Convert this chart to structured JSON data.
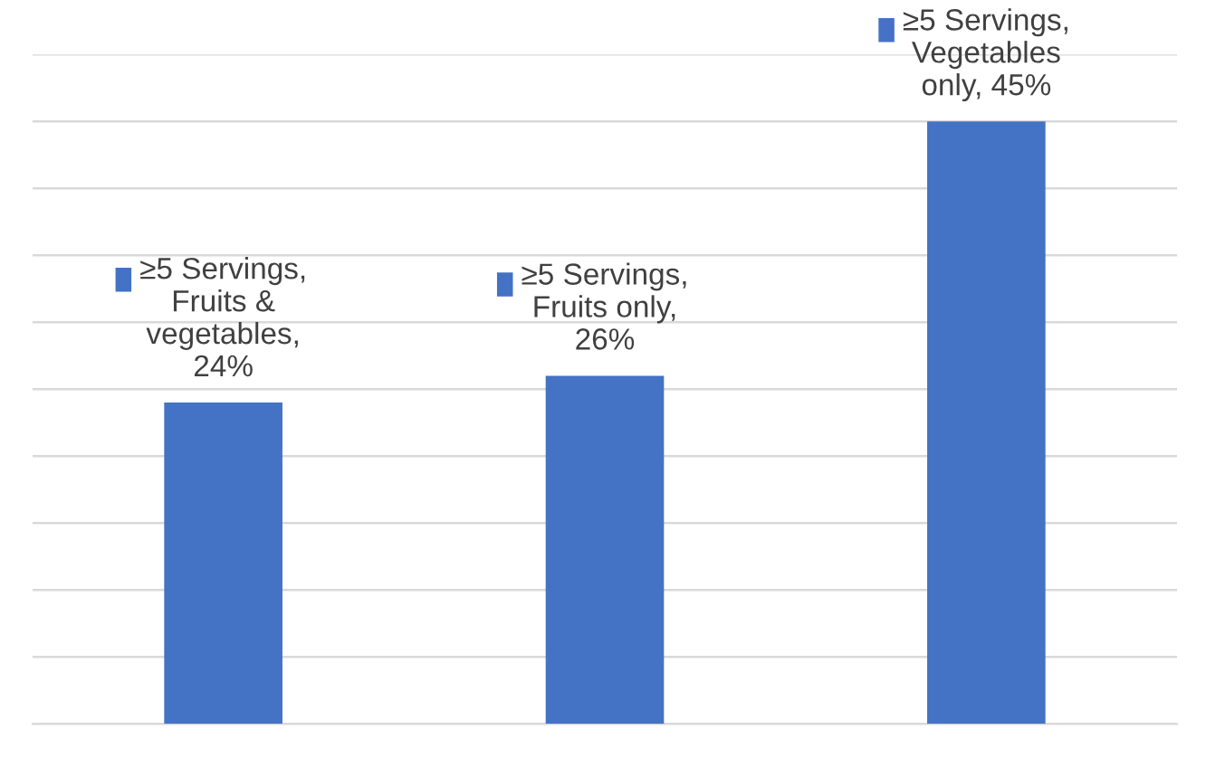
{
  "chart_data": {
    "type": "bar",
    "categories": [
      null,
      null,
      null
    ],
    "values": [
      24,
      26,
      45
    ],
    "color": "#4472c4",
    "value_labels": [
      "≥5 Servings, Fruits & vegetables, 24%",
      "≥5 Servings, Fruits only, 26%",
      "≥5 Servings, Vegetables only, 45%"
    ],
    "ylim": [
      0,
      50
    ],
    "yticks": [
      {
        "value": 0,
        "label": null
      },
      {
        "value": 5,
        "label": null
      },
      {
        "value": 10,
        "label": null
      },
      {
        "value": 15,
        "label": null
      },
      {
        "value": 20,
        "label": null
      },
      {
        "value": 25,
        "label": null
      },
      {
        "value": 30,
        "label": null
      },
      {
        "value": 35,
        "label": null
      },
      {
        "value": 40,
        "label": null
      },
      {
        "value": 45,
        "label": null
      },
      {
        "value": 50,
        "label": null
      }
    ],
    "grid": "y",
    "legend": false
  }
}
